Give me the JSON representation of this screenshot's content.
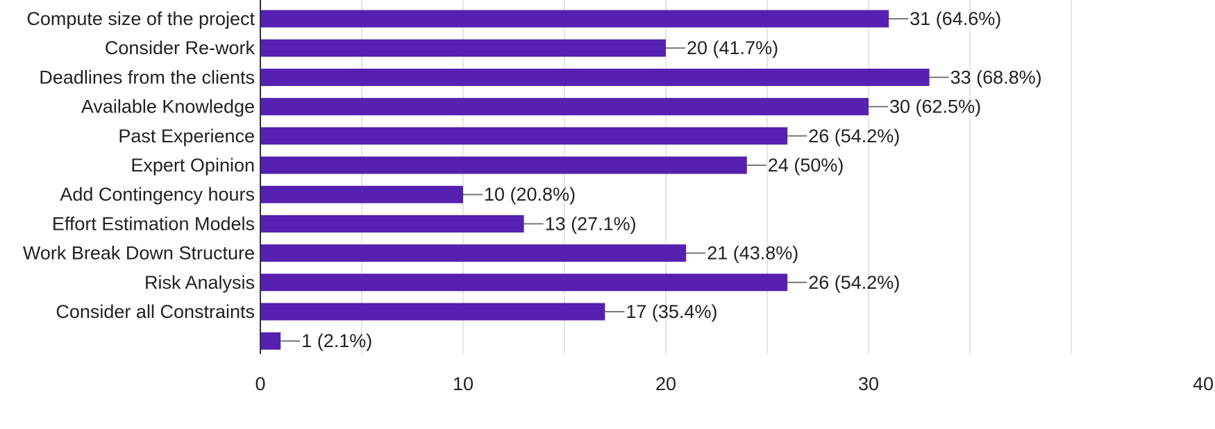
{
  "chart_data": {
    "type": "bar",
    "orientation": "horizontal",
    "title": "",
    "xlabel": "",
    "ylabel": "",
    "xlim": [
      0,
      40
    ],
    "ticks": [
      0,
      10,
      20,
      30,
      40
    ],
    "grid": true,
    "bar_color": "#5620b0",
    "categories": [
      "Compute size of the project",
      "Consider Re-work",
      "Deadlines from the clients",
      "Available Knowledge",
      "Past Experience",
      "Expert Opinion",
      "Add Contingency hours",
      "Effort Estimation Models",
      "Work Break Down Structure",
      "Risk Analysis",
      "Consider all Constraints",
      ""
    ],
    "values": [
      31,
      20,
      33,
      30,
      26,
      24,
      10,
      13,
      21,
      26,
      17,
      1
    ],
    "data_labels": [
      "31 (64.6%)",
      "20 (41.7%)",
      "33 (68.8%)",
      "30 (62.5%)",
      "26 (54.2%)",
      "24 (50%)",
      "10 (20.8%)",
      "13 (27.1%)",
      "21 (43.8%)",
      "26 (54.2%)",
      "17 (35.4%)",
      "1 (2.1%)"
    ]
  }
}
